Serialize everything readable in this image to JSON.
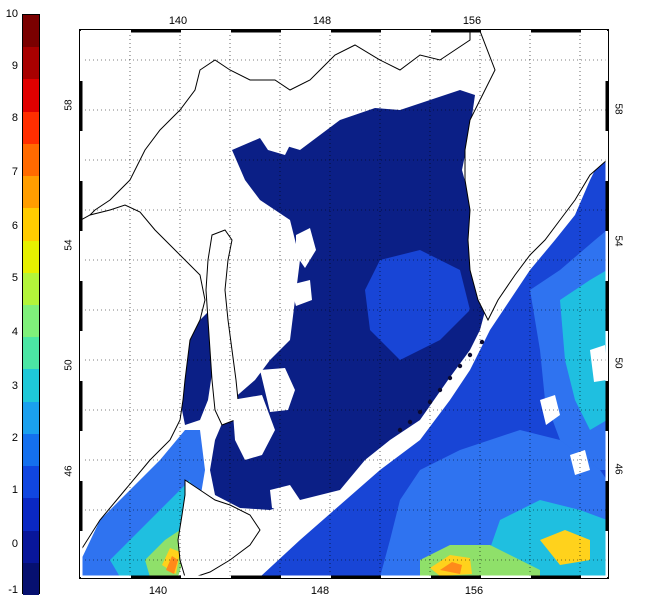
{
  "colorbar": {
    "labels": [
      "10",
      "9",
      "8",
      "7",
      "6",
      "5",
      "4",
      "3",
      "2",
      "1",
      "0",
      "-1"
    ],
    "colors": [
      "#7a0000",
      "#a80000",
      "#e00000",
      "#ff2e00",
      "#ff6a00",
      "#ff9d00",
      "#ffcc00",
      "#e6f000",
      "#b3f53a",
      "#7ff07a",
      "#4be6a4",
      "#1ec8d8",
      "#1aa0ee",
      "#1470ee",
      "#1046e0",
      "#0a28c4",
      "#08169a",
      "#061070"
    ]
  },
  "axes": {
    "lon_ticks_top": [
      "140",
      "148",
      "156"
    ],
    "lon_ticks_bottom": [
      "140",
      "148",
      "156"
    ],
    "lat_ticks_left": [
      "58",
      "54",
      "50",
      "46"
    ],
    "lat_ticks_right": [
      "58",
      "54",
      "50",
      "46"
    ]
  },
  "map_colors": {
    "deep": "#0b1f86",
    "mid": "#1845d6",
    "light": "#2f73f0",
    "cyan": "#1fbfe0",
    "green": "#8fe06a",
    "yellow": "#ffd21c",
    "orange": "#ff8a1a",
    "red": "#ff3b12",
    "land": "#ffffff",
    "coast": "#000000"
  }
}
